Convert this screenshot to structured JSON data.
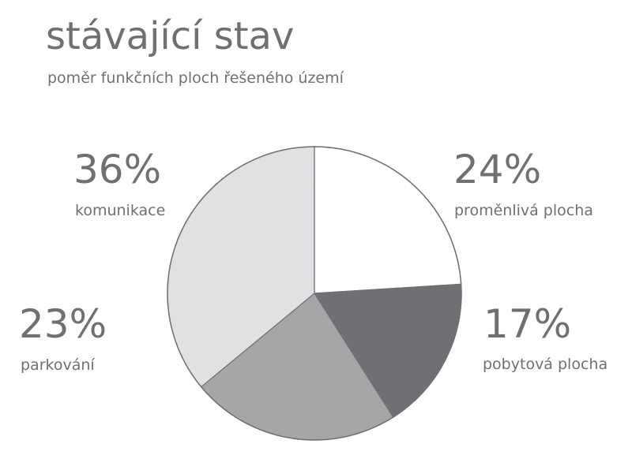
{
  "title": "stávající stav",
  "subtitle": "poměr funkčních ploch řešeného území",
  "chart_data": {
    "type": "pie",
    "title": "stávající stav",
    "subtitle": "poměr funkčních ploch řešeného území",
    "slices": [
      {
        "label": "proměnlivá plocha",
        "value": 24,
        "display": "24%",
        "color": "#ffffff"
      },
      {
        "label": "pobytová plocha",
        "value": 17,
        "display": "17%",
        "color": "#6f7074"
      },
      {
        "label": "parkování",
        "value": 23,
        "display": "23%",
        "color": "#a5a6a8"
      },
      {
        "label": "komunikace",
        "value": 36,
        "display": "36%",
        "color": "#e0e1e2"
      }
    ],
    "start_angle": "12 o'clock",
    "direction": "clockwise",
    "outline_color": "#6f7074"
  }
}
